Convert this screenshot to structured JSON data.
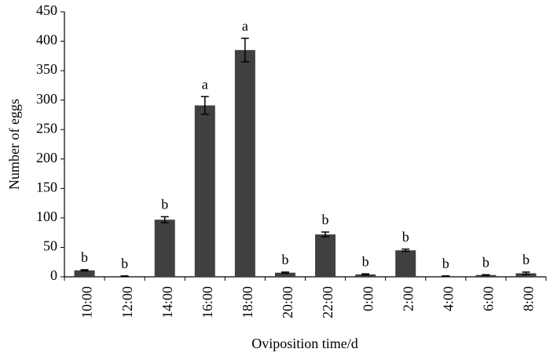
{
  "chart_data": {
    "type": "bar",
    "x_label": "Oviposition time/d",
    "y_label": "Number of eggs",
    "categories": [
      "10:00",
      "12:00",
      "14:00",
      "16:00",
      "18:00",
      "20:00",
      "22:00",
      "0:00",
      "2:00",
      "4:00",
      "6:00",
      "8:00"
    ],
    "values": [
      11,
      1,
      97,
      291,
      385,
      7,
      72,
      4,
      45,
      1,
      3,
      6
    ],
    "errors": [
      1,
      0.5,
      5,
      15,
      20,
      1,
      4,
      1,
      2,
      0.5,
      0.5,
      2
    ],
    "annotations": [
      "b",
      "b",
      "b",
      "a",
      "a",
      "b",
      "b",
      "b",
      "b",
      "b",
      "b",
      "b"
    ],
    "color": "#404040",
    "ylim": [
      0,
      450
    ],
    "yticks": [
      0,
      50,
      100,
      150,
      200,
      250,
      300,
      350,
      400,
      450
    ],
    "grid": false
  }
}
